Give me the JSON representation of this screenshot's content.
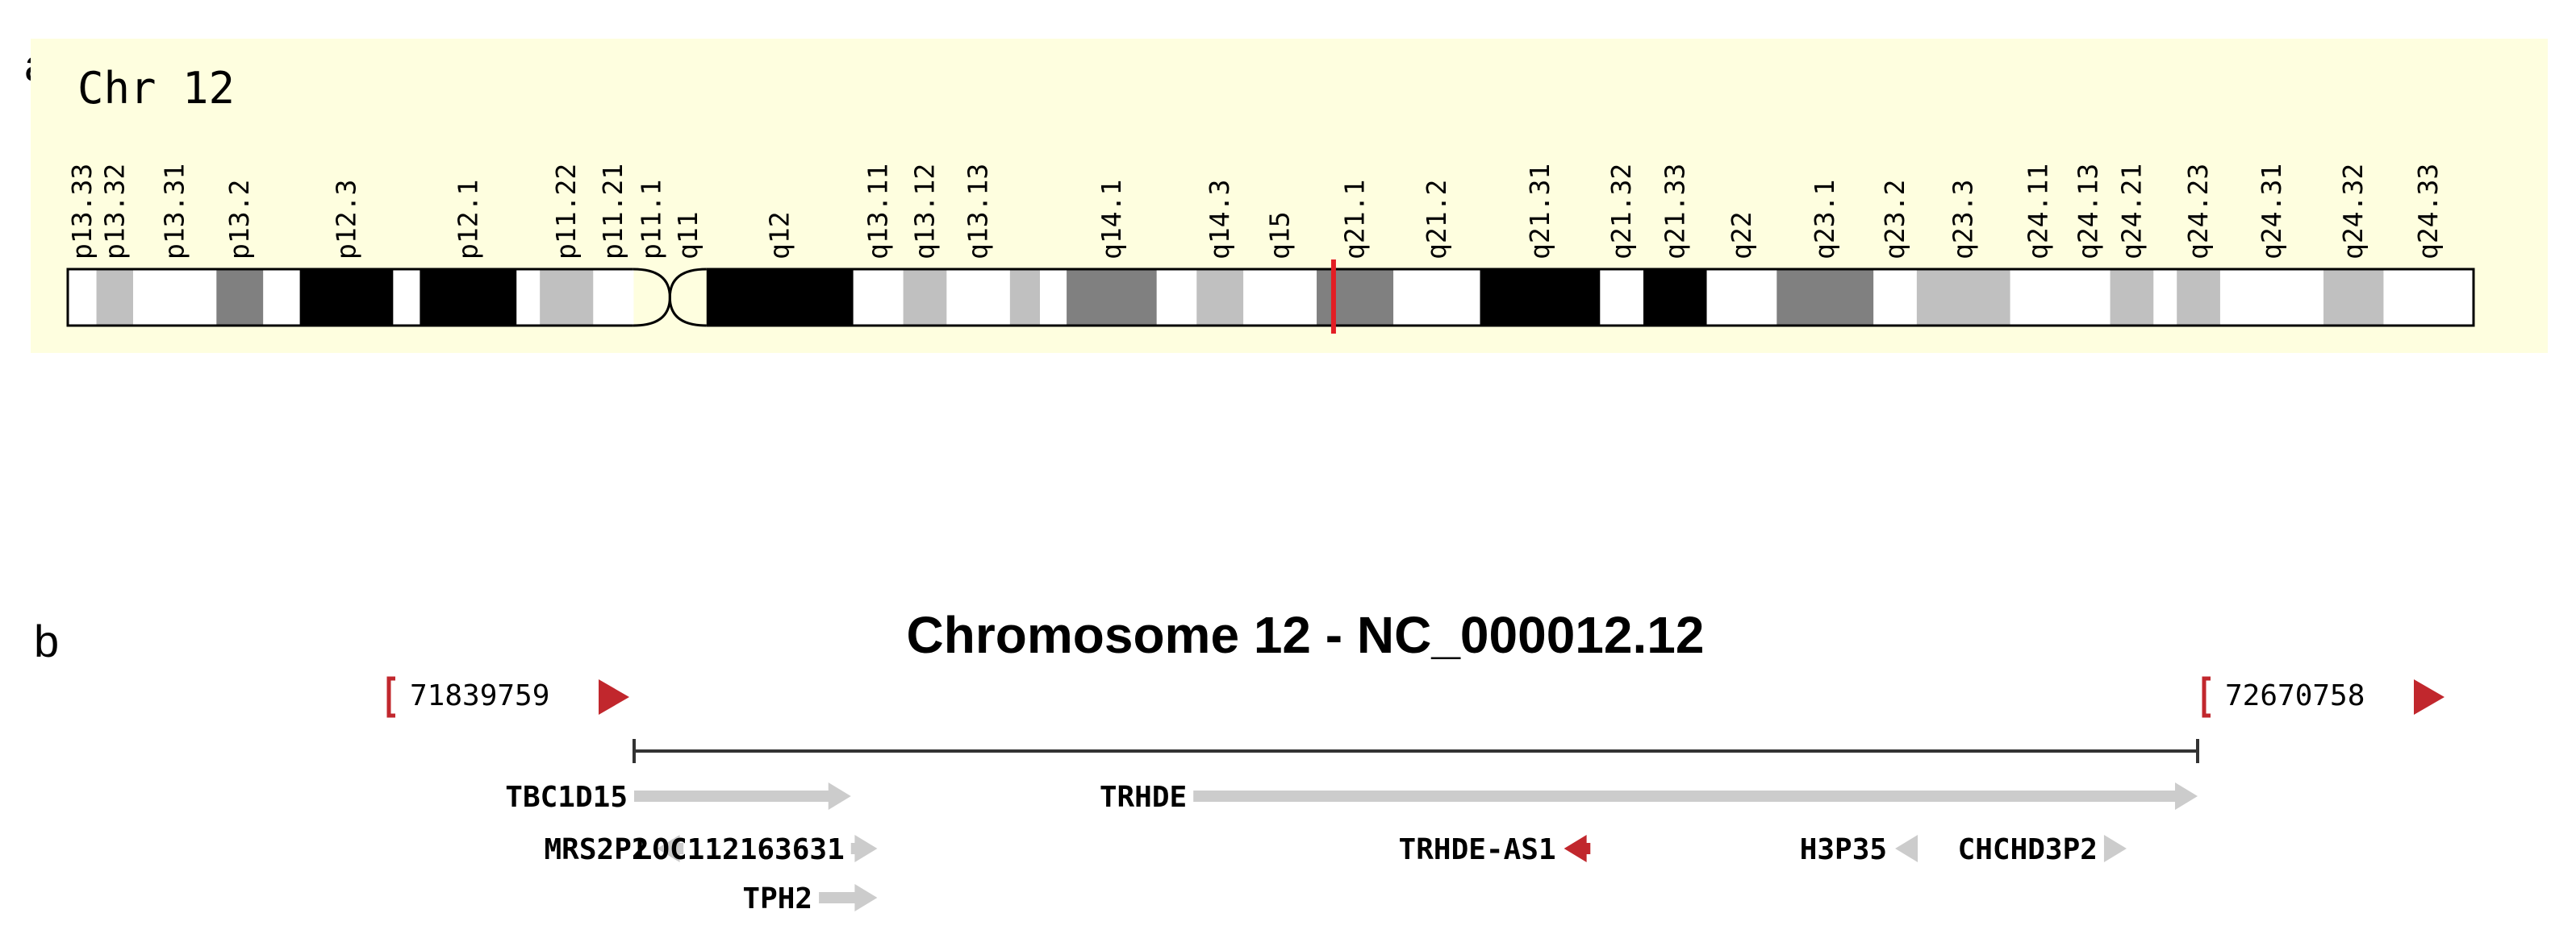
{
  "panel_a": {
    "label": "a",
    "chromosome": "Chr 12",
    "marker_band": "q21.1",
    "marker_color": "#e31e24",
    "background": "#fefedf",
    "bands": [
      {
        "name": "p13.33",
        "shade": "white",
        "w": 0.43
      },
      {
        "name": "p13.32",
        "shade": "gpos25",
        "w": 0.55
      },
      {
        "name": "p13.31",
        "shade": "white",
        "w": 1.25
      },
      {
        "name": "p13.2",
        "shade": "gpos75",
        "w": 0.7
      },
      {
        "name": "",
        "shade": "white",
        "w": 0.55
      },
      {
        "name": "p12.3",
        "shade": "black",
        "w": 1.4
      },
      {
        "name": "",
        "shade": "white",
        "w": 0.4
      },
      {
        "name": "p12.1",
        "shade": "black",
        "w": 1.45
      },
      {
        "name": "",
        "shade": "white",
        "w": 0.35
      },
      {
        "name": "p11.22",
        "shade": "gpos25",
        "w": 0.8
      },
      {
        "name": "p11.21",
        "shade": "white",
        "w": 0.6
      },
      {
        "name": "p11.1",
        "shade": "cen",
        "w": 0.55
      },
      {
        "name": "q11",
        "shade": "cen",
        "w": 0.55
      },
      {
        "name": "q12",
        "shade": "black",
        "w": 2.2
      },
      {
        "name": "q13.11",
        "shade": "white",
        "w": 0.75
      },
      {
        "name": "q13.12",
        "shade": "gpos25",
        "w": 0.65
      },
      {
        "name": "q13.13",
        "shade": "white",
        "w": 0.95
      },
      {
        "name": "",
        "shade": "gpos25",
        "w": 0.45
      },
      {
        "name": "",
        "shade": "white",
        "w": 0.4
      },
      {
        "name": "q14.1",
        "shade": "gpos75",
        "w": 1.35
      },
      {
        "name": "",
        "shade": "white",
        "w": 0.6
      },
      {
        "name": "q14.3",
        "shade": "gpos25",
        "w": 0.7
      },
      {
        "name": "q15",
        "shade": "white",
        "w": 1.1
      },
      {
        "name": "q21.1",
        "shade": "gpos75",
        "w": 1.15
      },
      {
        "name": "q21.2",
        "shade": "white",
        "w": 1.3
      },
      {
        "name": "q21.31",
        "shade": "black",
        "w": 1.8
      },
      {
        "name": "q21.32",
        "shade": "white",
        "w": 0.65
      },
      {
        "name": "q21.33",
        "shade": "black",
        "w": 0.95
      },
      {
        "name": "q22",
        "shade": "white",
        "w": 1.05
      },
      {
        "name": "q23.1",
        "shade": "gpos75",
        "w": 1.45
      },
      {
        "name": "q23.2",
        "shade": "white",
        "w": 0.65
      },
      {
        "name": "q23.3",
        "shade": "gpos25",
        "w": 1.4
      },
      {
        "name": "q24.11",
        "shade": "white",
        "w": 0.85
      },
      {
        "name": "q24.13",
        "shade": "white",
        "w": 0.65
      },
      {
        "name": "q24.21",
        "shade": "gpos25",
        "w": 0.65
      },
      {
        "name": "",
        "shade": "white",
        "w": 0.35
      },
      {
        "name": "q24.23",
        "shade": "gpos25",
        "w": 0.65
      },
      {
        "name": "q24.31",
        "shade": "white",
        "w": 1.55
      },
      {
        "name": "q24.32",
        "shade": "gpos25",
        "w": 0.9
      },
      {
        "name": "q24.33",
        "shade": "white",
        "w": 1.35
      }
    ],
    "shades": {
      "white": "#ffffff",
      "gpos25": "#c0c0c0",
      "gpos75": "#808080",
      "black": "#000000",
      "cen": "#fefedf"
    }
  },
  "panel_b": {
    "label": "b",
    "title": "Chromosome 12 - NC_000012.12",
    "start_coord": "71839759",
    "end_coord": "72670758",
    "start_value": 71839759,
    "end_value": 72670758,
    "nav_color": "#c1272d",
    "gene_color": "#cccccc",
    "highlight_color": "#c1272d",
    "genes": [
      {
        "name": "TBC1D15",
        "strand": "+",
        "row": 1,
        "start": 71839759,
        "end": 71955000,
        "highlight": false
      },
      {
        "name": "TRHDE",
        "strand": "+",
        "row": 1,
        "start": 72137000,
        "end": 72670758,
        "highlight": false
      },
      {
        "name": "MRS2P2",
        "strand": "-",
        "row": 2,
        "start": 71852000,
        "end": 71866000,
        "highlight": false
      },
      {
        "name": "LOC112163631",
        "strand": "+",
        "row": 2,
        "start": 71955000,
        "end": 71969000,
        "highlight": false
      },
      {
        "name": "TRHDE-AS1",
        "strand": "-",
        "row": 2,
        "start": 72334000,
        "end": 72348000,
        "highlight": true
      },
      {
        "name": "H3P35",
        "strand": "-",
        "row": 2,
        "start": 72510000,
        "end": 72522000,
        "highlight": false
      },
      {
        "name": "CHCHD3P2",
        "strand": "+",
        "row": 2,
        "start": 72621000,
        "end": 72633000,
        "highlight": false
      },
      {
        "name": "TPH2",
        "strand": "+",
        "row": 3,
        "start": 71938000,
        "end": 71969000,
        "highlight": false
      }
    ]
  }
}
